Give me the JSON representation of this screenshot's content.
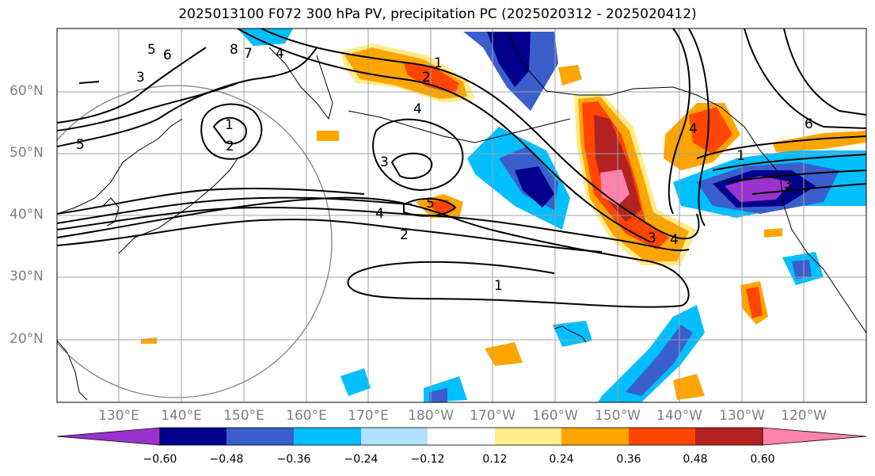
{
  "title": "2025013100 F072 300 hPa PV, precipitation PC (2025020312 - 2025020412)",
  "lat_labels": [
    "60°N",
    "50°N",
    "40°N",
    "30°N",
    "20°N"
  ],
  "lon_labels": [
    "130°E",
    "140°E",
    "150°E",
    "160°E",
    "170°E",
    "180°W",
    "170°W",
    "160°W",
    "150°W",
    "140°W",
    "130°W",
    "120°W"
  ],
  "contour_labels": [
    "1",
    "2",
    "3",
    "4",
    "5",
    "6",
    "7",
    "8"
  ],
  "colorbar": {
    "ticks": [
      "−0.60",
      "−0.48",
      "−0.36",
      "−0.24",
      "−0.12",
      "0.12",
      "0.24",
      "0.36",
      "0.48",
      "0.60"
    ],
    "colors": [
      "#9a32cd",
      "#00008b",
      "#3a5fcd",
      "#00bfff",
      "#b0e2ff",
      "#ffffff",
      "#ffec8b",
      "#ffa500",
      "#ff4500",
      "#b22222",
      "#ff82ab"
    ]
  },
  "colors": {
    "pv_contour": "#000000",
    "grid": "#a0a0a0",
    "axis_label": "#7f7f7f"
  }
}
